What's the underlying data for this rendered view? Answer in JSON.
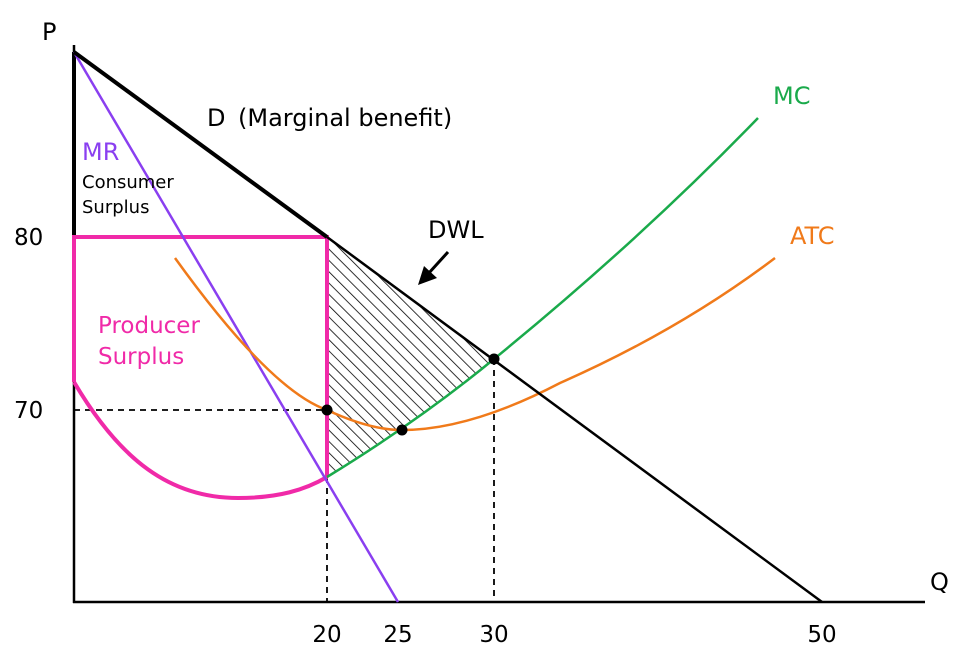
{
  "axes": {
    "y_label": "P",
    "x_label": "Q",
    "y_ticks": [
      "80",
      "70"
    ],
    "x_ticks": [
      "20",
      "25",
      "30",
      "50"
    ]
  },
  "curves": {
    "demand": "D",
    "demand_note": "(Marginal benefit)",
    "mr": "MR",
    "mc": "MC",
    "atc": "ATC"
  },
  "regions": {
    "consumer_surplus": [
      "Consumer",
      "Surplus"
    ],
    "producer_surplus": [
      "Producer",
      "Surplus"
    ],
    "dwl": "DWL"
  },
  "colors": {
    "demand": "#000000",
    "mr": "#8a3ff0",
    "mc": "#1aaa4b",
    "atc": "#f07a1a",
    "producer_surplus": "#f02aa8",
    "axis": "#000000"
  }
}
